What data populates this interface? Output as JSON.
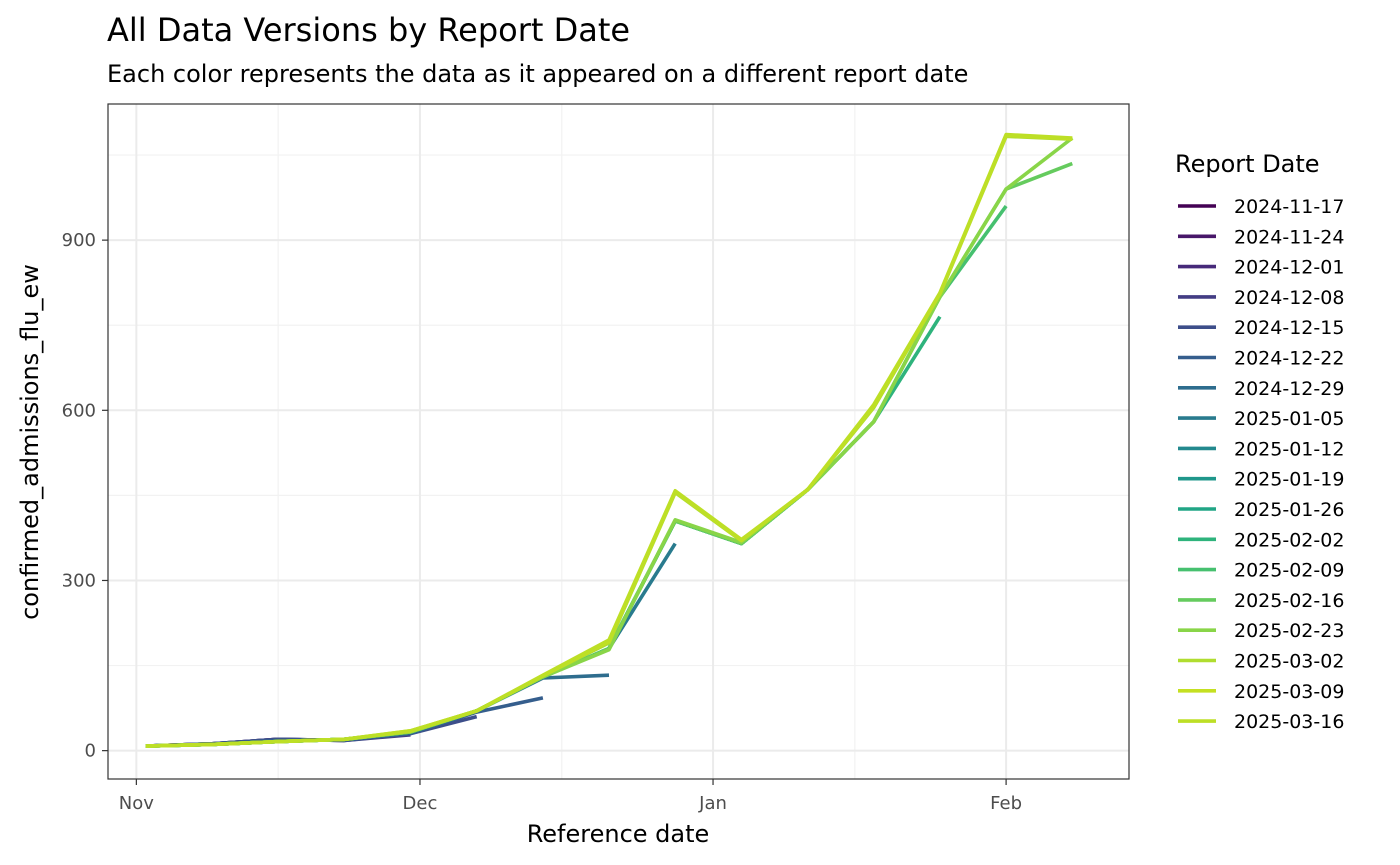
{
  "chart_data": {
    "type": "line",
    "title": "All Data Versions by Report Date",
    "subtitle": "Each color represents the data as it appeared on a different report date",
    "xlabel": "Reference date",
    "ylabel": "confirmed_admissions_flu_ew",
    "xlim": [
      "2024-10-29",
      "2025-02-14"
    ],
    "ylim": [
      -50,
      1140
    ],
    "x_ticks": [
      {
        "date": "2024-11-01",
        "label": "Nov"
      },
      {
        "date": "2024-12-01",
        "label": "Dec"
      },
      {
        "date": "2025-01-01",
        "label": "Jan"
      },
      {
        "date": "2025-02-01",
        "label": "Feb"
      }
    ],
    "y_ticks": [
      0,
      300,
      600,
      900
    ],
    "grid": true,
    "legend": {
      "title": "Report Date",
      "position": "right"
    },
    "series": [
      {
        "name": "2024-11-17",
        "color": "#440154",
        "points": [
          [
            "2024-11-02",
            8
          ],
          [
            "2024-11-09",
            12
          ]
        ]
      },
      {
        "name": "2024-11-24",
        "color": "#481769",
        "points": [
          [
            "2024-11-02",
            8
          ],
          [
            "2024-11-09",
            12
          ],
          [
            "2024-11-16",
            20
          ]
        ]
      },
      {
        "name": "2024-12-01",
        "color": "#472A7A",
        "points": [
          [
            "2024-11-02",
            8
          ],
          [
            "2024-11-09",
            12
          ],
          [
            "2024-11-16",
            20
          ],
          [
            "2024-11-23",
            18
          ]
        ]
      },
      {
        "name": "2024-12-08",
        "color": "#433D84",
        "points": [
          [
            "2024-11-02",
            8
          ],
          [
            "2024-11-09",
            12
          ],
          [
            "2024-11-16",
            20
          ],
          [
            "2024-11-23",
            18
          ],
          [
            "2024-11-30",
            28
          ]
        ]
      },
      {
        "name": "2024-12-15",
        "color": "#3D4E8A",
        "points": [
          [
            "2024-11-02",
            8
          ],
          [
            "2024-11-09",
            12
          ],
          [
            "2024-11-16",
            20
          ],
          [
            "2024-11-23",
            18
          ],
          [
            "2024-11-30",
            30
          ],
          [
            "2024-12-07",
            60
          ]
        ]
      },
      {
        "name": "2024-12-22",
        "color": "#355E8D",
        "points": [
          [
            "2024-11-02",
            8
          ],
          [
            "2024-11-09",
            12
          ],
          [
            "2024-11-16",
            18
          ],
          [
            "2024-11-23",
            19
          ],
          [
            "2024-11-30",
            30
          ],
          [
            "2024-12-07",
            68
          ],
          [
            "2024-12-14",
            93
          ]
        ]
      },
      {
        "name": "2024-12-29",
        "color": "#2E6D8E",
        "points": [
          [
            "2024-11-02",
            8
          ],
          [
            "2024-11-09",
            11
          ],
          [
            "2024-11-16",
            16
          ],
          [
            "2024-11-23",
            20
          ],
          [
            "2024-11-30",
            32
          ],
          [
            "2024-12-07",
            70
          ],
          [
            "2024-12-14",
            128
          ],
          [
            "2024-12-21",
            133
          ]
        ]
      },
      {
        "name": "2025-01-05",
        "color": "#297B8E",
        "points": [
          [
            "2024-11-02",
            8
          ],
          [
            "2024-11-09",
            11
          ],
          [
            "2024-11-16",
            16
          ],
          [
            "2024-11-23",
            20
          ],
          [
            "2024-11-30",
            33
          ],
          [
            "2024-12-07",
            70
          ],
          [
            "2024-12-14",
            130
          ],
          [
            "2024-12-21",
            180
          ],
          [
            "2024-12-28",
            365
          ]
        ]
      },
      {
        "name": "2025-01-12",
        "color": "#23898E",
        "points": [
          [
            "2024-11-02",
            8
          ],
          [
            "2024-11-09",
            11
          ],
          [
            "2024-11-16",
            16
          ],
          [
            "2024-11-23",
            20
          ],
          [
            "2024-11-30",
            33
          ],
          [
            "2024-12-07",
            70
          ],
          [
            "2024-12-14",
            130
          ],
          [
            "2024-12-21",
            180
          ],
          [
            "2024-12-28",
            405
          ],
          [
            "2025-01-04",
            365
          ]
        ]
      },
      {
        "name": "2025-01-19",
        "color": "#1F978B",
        "points": [
          [
            "2024-11-02",
            8
          ],
          [
            "2024-11-09",
            11
          ],
          [
            "2024-11-16",
            16
          ],
          [
            "2024-11-23",
            20
          ],
          [
            "2024-11-30",
            33
          ],
          [
            "2024-12-07",
            70
          ],
          [
            "2024-12-14",
            130
          ],
          [
            "2024-12-21",
            180
          ],
          [
            "2024-12-28",
            405
          ],
          [
            "2025-01-04",
            365
          ],
          [
            "2025-01-11",
            460
          ]
        ]
      },
      {
        "name": "2025-01-26",
        "color": "#21A585",
        "points": [
          [
            "2024-11-02",
            8
          ],
          [
            "2024-11-09",
            11
          ],
          [
            "2024-11-16",
            16
          ],
          [
            "2024-11-23",
            20
          ],
          [
            "2024-11-30",
            33
          ],
          [
            "2024-12-07",
            70
          ],
          [
            "2024-12-14",
            130
          ],
          [
            "2024-12-21",
            180
          ],
          [
            "2024-12-28",
            405
          ],
          [
            "2025-01-04",
            365
          ],
          [
            "2025-01-11",
            460
          ],
          [
            "2025-01-18",
            580
          ]
        ]
      },
      {
        "name": "2025-02-02",
        "color": "#2EB37C",
        "points": [
          [
            "2024-11-02",
            8
          ],
          [
            "2024-11-09",
            11
          ],
          [
            "2024-11-16",
            16
          ],
          [
            "2024-11-23",
            20
          ],
          [
            "2024-11-30",
            33
          ],
          [
            "2024-12-07",
            70
          ],
          [
            "2024-12-14",
            130
          ],
          [
            "2024-12-21",
            180
          ],
          [
            "2024-12-28",
            405
          ],
          [
            "2025-01-04",
            365
          ],
          [
            "2025-01-11",
            460
          ],
          [
            "2025-01-18",
            580
          ],
          [
            "2025-01-25",
            765
          ]
        ]
      },
      {
        "name": "2025-02-09",
        "color": "#46C06F",
        "points": [
          [
            "2024-11-02",
            8
          ],
          [
            "2024-11-09",
            11
          ],
          [
            "2024-11-16",
            16
          ],
          [
            "2024-11-23",
            20
          ],
          [
            "2024-11-30",
            33
          ],
          [
            "2024-12-07",
            70
          ],
          [
            "2024-12-14",
            130
          ],
          [
            "2024-12-21",
            180
          ],
          [
            "2024-12-28",
            405
          ],
          [
            "2025-01-04",
            365
          ],
          [
            "2025-01-11",
            460
          ],
          [
            "2025-01-18",
            580
          ],
          [
            "2025-01-25",
            800
          ],
          [
            "2025-02-01",
            960
          ]
        ]
      },
      {
        "name": "2025-02-16",
        "color": "#65CB5E",
        "points": [
          [
            "2024-11-02",
            8
          ],
          [
            "2024-11-09",
            11
          ],
          [
            "2024-11-16",
            16
          ],
          [
            "2024-11-23",
            20
          ],
          [
            "2024-11-30",
            33
          ],
          [
            "2024-12-07",
            70
          ],
          [
            "2024-12-14",
            130
          ],
          [
            "2024-12-21",
            180
          ],
          [
            "2024-12-28",
            405
          ],
          [
            "2025-01-04",
            365
          ],
          [
            "2025-01-11",
            460
          ],
          [
            "2025-01-18",
            580
          ],
          [
            "2025-01-25",
            800
          ],
          [
            "2025-02-01",
            990
          ],
          [
            "2025-02-08",
            1035
          ]
        ]
      },
      {
        "name": "2025-02-23",
        "color": "#89D548",
        "points": [
          [
            "2024-11-02",
            8
          ],
          [
            "2024-11-09",
            11
          ],
          [
            "2024-11-16",
            16
          ],
          [
            "2024-11-23",
            20
          ],
          [
            "2024-11-30",
            33
          ],
          [
            "2024-12-07",
            70
          ],
          [
            "2024-12-14",
            130
          ],
          [
            "2024-12-21",
            178
          ],
          [
            "2024-12-28",
            407
          ],
          [
            "2025-01-04",
            367
          ],
          [
            "2025-01-11",
            460
          ],
          [
            "2025-01-18",
            580
          ],
          [
            "2025-01-25",
            800
          ],
          [
            "2025-02-01",
            990
          ],
          [
            "2025-02-08",
            1080
          ]
        ]
      },
      {
        "name": "2025-03-02",
        "color": "#B0DD2F",
        "points": [
          [
            "2024-11-02",
            8
          ],
          [
            "2024-11-09",
            11
          ],
          [
            "2024-11-16",
            16
          ],
          [
            "2024-11-23",
            20
          ],
          [
            "2024-11-30",
            34
          ],
          [
            "2024-12-07",
            70
          ],
          [
            "2024-12-14",
            132
          ],
          [
            "2024-12-21",
            190
          ],
          [
            "2024-12-28",
            455
          ],
          [
            "2025-01-04",
            370
          ],
          [
            "2025-01-11",
            460
          ],
          [
            "2025-01-18",
            605
          ],
          [
            "2025-01-25",
            805
          ],
          [
            "2025-02-01",
            1083
          ],
          [
            "2025-02-08",
            1078
          ]
        ]
      },
      {
        "name": "2025-03-09",
        "color": "#C5E021",
        "points": [
          [
            "2024-11-02",
            8
          ],
          [
            "2024-11-09",
            11
          ],
          [
            "2024-11-16",
            16
          ],
          [
            "2024-11-23",
            20
          ],
          [
            "2024-11-30",
            35
          ],
          [
            "2024-12-07",
            70
          ],
          [
            "2024-12-14",
            132
          ],
          [
            "2024-12-21",
            193
          ],
          [
            "2024-12-28",
            457
          ],
          [
            "2025-01-04",
            371
          ],
          [
            "2025-01-11",
            460
          ],
          [
            "2025-01-18",
            608
          ],
          [
            "2025-01-25",
            806
          ],
          [
            "2025-02-01",
            1085
          ],
          [
            "2025-02-08",
            1079
          ]
        ]
      },
      {
        "name": "2025-03-16",
        "color": "#BDDF26",
        "points": [
          [
            "2024-11-02",
            8
          ],
          [
            "2024-11-09",
            11
          ],
          [
            "2024-11-16",
            16
          ],
          [
            "2024-11-23",
            20
          ],
          [
            "2024-11-30",
            35
          ],
          [
            "2024-12-07",
            70
          ],
          [
            "2024-12-14",
            133
          ],
          [
            "2024-12-21",
            195
          ],
          [
            "2024-12-28",
            458
          ],
          [
            "2025-01-04",
            372
          ],
          [
            "2025-01-11",
            460
          ],
          [
            "2025-01-18",
            610
          ],
          [
            "2025-01-25",
            807
          ],
          [
            "2025-02-01",
            1086
          ],
          [
            "2025-02-08",
            1080
          ]
        ]
      }
    ]
  }
}
